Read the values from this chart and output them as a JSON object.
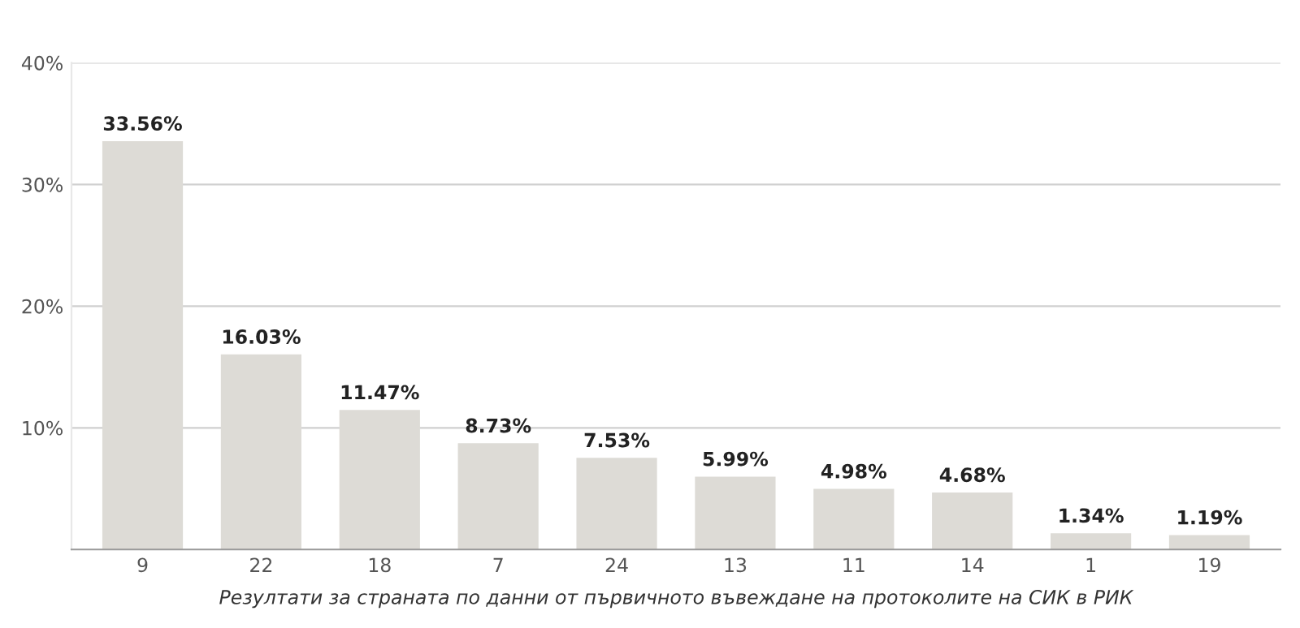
{
  "chart_data": {
    "type": "bar",
    "categories": [
      "9",
      "22",
      "18",
      "7",
      "24",
      "13",
      "11",
      "14",
      "1",
      "19"
    ],
    "values": [
      33.56,
      16.03,
      11.47,
      8.73,
      7.53,
      5.99,
      4.98,
      4.68,
      1.34,
      1.19
    ],
    "value_labels": [
      "33.56%",
      "16.03%",
      "11.47%",
      "8.73%",
      "7.53%",
      "5.99%",
      "4.98%",
      "4.68%",
      "1.34%",
      "1.19%"
    ],
    "color": "#dddbd6",
    "ylim": [
      0,
      40
    ],
    "yticks": [
      {
        "value": 10,
        "label": "10%"
      },
      {
        "value": 20,
        "label": "20%"
      },
      {
        "value": 30,
        "label": "30%"
      },
      {
        "value": 40,
        "label": "40%"
      }
    ],
    "grid": "y",
    "xlabel": "Резултати за страната по данни от първичното въвеждане на протоколите на СИК в РИК"
  }
}
